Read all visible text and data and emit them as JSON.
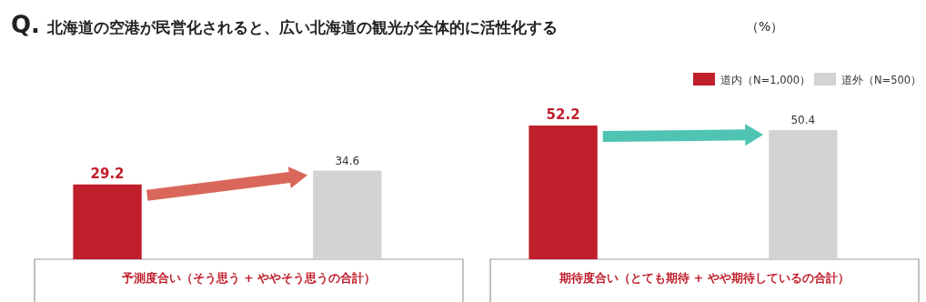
{
  "chart_data": {
    "type": "bar",
    "title": "Q. 北海道の空港が民営化されると、広い北海道の観光が全体的に活性化する",
    "subtitle": "（%）",
    "categories": [
      "予測度合い（そう思う + ややそう思うの合計）",
      "期待度合い（とても期待 + やや期待しているの合計）"
    ],
    "series": [
      {
        "name": "道内（N=1,000）",
        "color": "#c01f2c",
        "values": [
          29.2,
          52.2
        ]
      },
      {
        "name": "道外（N=500）",
        "color": "#d2d3d5",
        "values": [
          34.6,
          50.4
        ]
      }
    ],
    "data_labels": true,
    "legend": "top right"
  }
}
